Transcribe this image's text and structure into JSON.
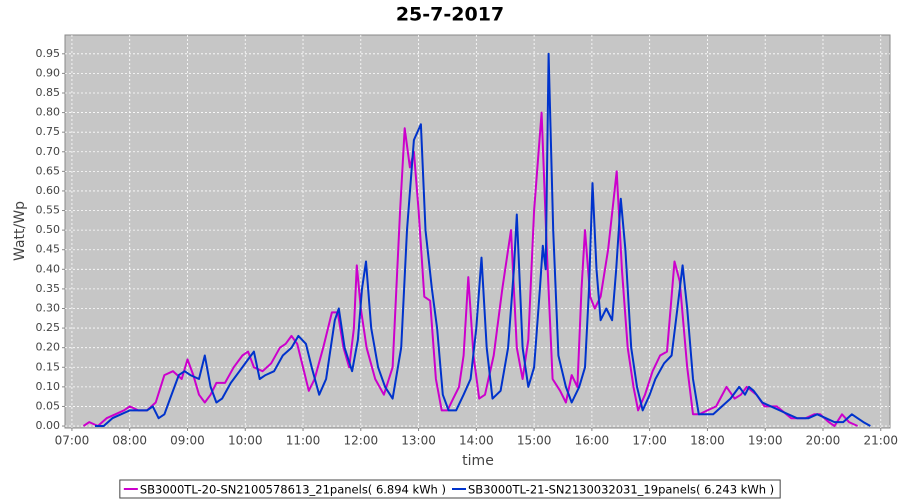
{
  "chart_data": {
    "type": "line",
    "title": "25-7-2017",
    "x_label": "time",
    "y_label": "Watt/Wp",
    "xlim": [
      6.88,
      21.16
    ],
    "ylim": [
      -0.005,
      0.998
    ],
    "grid": true,
    "legend": "bottom",
    "xticks": [
      {
        "value": 7,
        "label": "07:00"
      },
      {
        "value": 8,
        "label": "08:00"
      },
      {
        "value": 9,
        "label": "09:00"
      },
      {
        "value": 10,
        "label": "10:00"
      },
      {
        "value": 11,
        "label": "11:00"
      },
      {
        "value": 12,
        "label": "12:00"
      },
      {
        "value": 13,
        "label": "13:00"
      },
      {
        "value": 14,
        "label": "14:00"
      },
      {
        "value": 15,
        "label": "15:00"
      },
      {
        "value": 16,
        "label": "16:00"
      },
      {
        "value": 17,
        "label": "17:00"
      },
      {
        "value": 18,
        "label": "18:00"
      },
      {
        "value": 19,
        "label": "19:00"
      },
      {
        "value": 20,
        "label": "20:00"
      },
      {
        "value": 21,
        "label": "21:00"
      }
    ],
    "yticks": [
      {
        "value": 0,
        "label": "0.00"
      },
      0.05,
      {
        "value": 0.1,
        "label": "0.10"
      },
      0.15,
      {
        "value": 0.2,
        "label": "0.20"
      },
      0.25,
      {
        "value": 0.3,
        "label": "0.30"
      },
      0.35,
      {
        "value": 0.4,
        "label": "0.40"
      },
      0.45,
      {
        "value": 0.5,
        "label": "0.50"
      },
      0.55,
      {
        "value": 0.6,
        "label": "0.60"
      },
      0.65,
      {
        "value": 0.7,
        "label": "0.70"
      },
      0.75,
      {
        "value": 0.8,
        "label": "0.80"
      },
      0.85,
      {
        "value": 0.9,
        "label": "0.90"
      },
      0.95
    ],
    "series": [
      {
        "name": "SB3000TL-20-SN2100578613_21panels( 6.894 kWh )",
        "color": "#cc00cc",
        "x": [
          7.2,
          7.3,
          7.45,
          7.6,
          7.75,
          7.9,
          8.0,
          8.15,
          8.3,
          8.45,
          8.6,
          8.75,
          8.9,
          9.0,
          9.1,
          9.2,
          9.3,
          9.4,
          9.5,
          9.65,
          9.8,
          9.95,
          10.05,
          10.15,
          10.3,
          10.45,
          10.6,
          10.7,
          10.8,
          10.9,
          11.0,
          11.1,
          11.2,
          11.35,
          11.5,
          11.6,
          11.7,
          11.8,
          11.88,
          11.93,
          12.0,
          12.1,
          12.25,
          12.4,
          12.55,
          12.68,
          12.76,
          12.85,
          12.92,
          13.0,
          13.1,
          13.2,
          13.3,
          13.4,
          13.5,
          13.6,
          13.7,
          13.78,
          13.86,
          13.95,
          14.05,
          14.15,
          14.3,
          14.45,
          14.6,
          14.7,
          14.8,
          14.9,
          15.0,
          15.13,
          15.22,
          15.32,
          15.45,
          15.55,
          15.65,
          15.75,
          15.82,
          15.88,
          15.97,
          16.05,
          16.15,
          16.28,
          16.43,
          16.52,
          16.62,
          16.72,
          16.8,
          16.92,
          17.05,
          17.18,
          17.3,
          17.43,
          17.52,
          17.65,
          17.75,
          17.86,
          18.0,
          18.15,
          18.33,
          18.47,
          18.58,
          18.68,
          18.85,
          18.99,
          19.2,
          19.45,
          19.7,
          19.85,
          19.95,
          20.1,
          20.2,
          20.33,
          20.45,
          20.6
        ],
        "values": [
          0,
          0.01,
          0,
          0.02,
          0.03,
          0.04,
          0.05,
          0.04,
          0.04,
          0.06,
          0.13,
          0.14,
          0.12,
          0.17,
          0.13,
          0.08,
          0.06,
          0.08,
          0.11,
          0.11,
          0.15,
          0.18,
          0.19,
          0.15,
          0.14,
          0.16,
          0.2,
          0.21,
          0.23,
          0.21,
          0.15,
          0.09,
          0.12,
          0.2,
          0.29,
          0.29,
          0.2,
          0.15,
          0.25,
          0.41,
          0.3,
          0.2,
          0.12,
          0.08,
          0.15,
          0.55,
          0.76,
          0.66,
          0.7,
          0.55,
          0.33,
          0.32,
          0.12,
          0.04,
          0.04,
          0.07,
          0.1,
          0.18,
          0.38,
          0.18,
          0.07,
          0.08,
          0.18,
          0.35,
          0.5,
          0.2,
          0.12,
          0.22,
          0.55,
          0.8,
          0.45,
          0.12,
          0.09,
          0.06,
          0.13,
          0.1,
          0.35,
          0.5,
          0.33,
          0.3,
          0.33,
          0.45,
          0.65,
          0.4,
          0.2,
          0.1,
          0.04,
          0.08,
          0.14,
          0.18,
          0.19,
          0.42,
          0.37,
          0.15,
          0.03,
          0.03,
          0.04,
          0.05,
          0.1,
          0.07,
          0.08,
          0.1,
          0.08,
          0.05,
          0.05,
          0.02,
          0.02,
          0.03,
          0.03,
          0.01,
          0,
          0.03,
          0.01,
          0
        ]
      },
      {
        "name": "SB3000TL-21-SN2130032031_19panels( 6.243 kWh )",
        "color": "#0033cc",
        "x": [
          7.4,
          7.55,
          7.7,
          7.85,
          8.0,
          8.15,
          8.3,
          8.4,
          8.5,
          8.6,
          8.7,
          8.85,
          8.95,
          9.05,
          9.2,
          9.3,
          9.4,
          9.5,
          9.6,
          9.75,
          9.9,
          10.05,
          10.15,
          10.25,
          10.35,
          10.5,
          10.65,
          10.8,
          10.92,
          11.05,
          11.15,
          11.28,
          11.4,
          11.55,
          11.62,
          11.72,
          11.85,
          11.95,
          12.02,
          12.09,
          12.18,
          12.3,
          12.42,
          12.55,
          12.7,
          12.8,
          12.92,
          13.04,
          13.12,
          13.23,
          13.32,
          13.42,
          13.52,
          13.65,
          13.78,
          13.9,
          14.0,
          14.09,
          14.18,
          14.28,
          14.42,
          14.55,
          14.65,
          14.7,
          14.8,
          14.9,
          15.0,
          15.1,
          15.15,
          15.2,
          15.25,
          15.33,
          15.42,
          15.55,
          15.65,
          15.78,
          15.88,
          15.95,
          16.01,
          16.08,
          16.15,
          16.25,
          16.35,
          16.42,
          16.5,
          16.58,
          16.68,
          16.78,
          16.88,
          17.0,
          17.1,
          17.25,
          17.38,
          17.48,
          17.57,
          17.65,
          17.75,
          17.85,
          17.98,
          18.1,
          18.25,
          18.4,
          18.55,
          18.65,
          18.72,
          18.8,
          18.95,
          19.1,
          19.25,
          19.4,
          19.55,
          19.75,
          19.9,
          20.05,
          20.2,
          20.35,
          20.5,
          20.6,
          20.7,
          20.82
        ],
        "values": [
          0,
          0,
          0.02,
          0.03,
          0.04,
          0.04,
          0.04,
          0.05,
          0.02,
          0.03,
          0.07,
          0.13,
          0.14,
          0.13,
          0.12,
          0.18,
          0.1,
          0.06,
          0.07,
          0.11,
          0.14,
          0.17,
          0.19,
          0.12,
          0.13,
          0.14,
          0.18,
          0.2,
          0.23,
          0.21,
          0.15,
          0.08,
          0.12,
          0.27,
          0.3,
          0.2,
          0.14,
          0.22,
          0.35,
          0.42,
          0.25,
          0.15,
          0.1,
          0.07,
          0.2,
          0.5,
          0.73,
          0.77,
          0.5,
          0.35,
          0.25,
          0.08,
          0.04,
          0.04,
          0.08,
          0.12,
          0.25,
          0.43,
          0.2,
          0.07,
          0.09,
          0.2,
          0.4,
          0.54,
          0.2,
          0.1,
          0.15,
          0.35,
          0.46,
          0.4,
          0.95,
          0.5,
          0.18,
          0.1,
          0.06,
          0.1,
          0.15,
          0.35,
          0.62,
          0.4,
          0.27,
          0.3,
          0.27,
          0.4,
          0.58,
          0.45,
          0.2,
          0.1,
          0.04,
          0.08,
          0.12,
          0.16,
          0.18,
          0.3,
          0.41,
          0.3,
          0.12,
          0.03,
          0.03,
          0.03,
          0.05,
          0.07,
          0.1,
          0.08,
          0.1,
          0.09,
          0.06,
          0.05,
          0.04,
          0.03,
          0.02,
          0.02,
          0.03,
          0.02,
          0.01,
          0.01,
          0.03,
          0.02,
          0.01,
          0
        ]
      }
    ]
  }
}
